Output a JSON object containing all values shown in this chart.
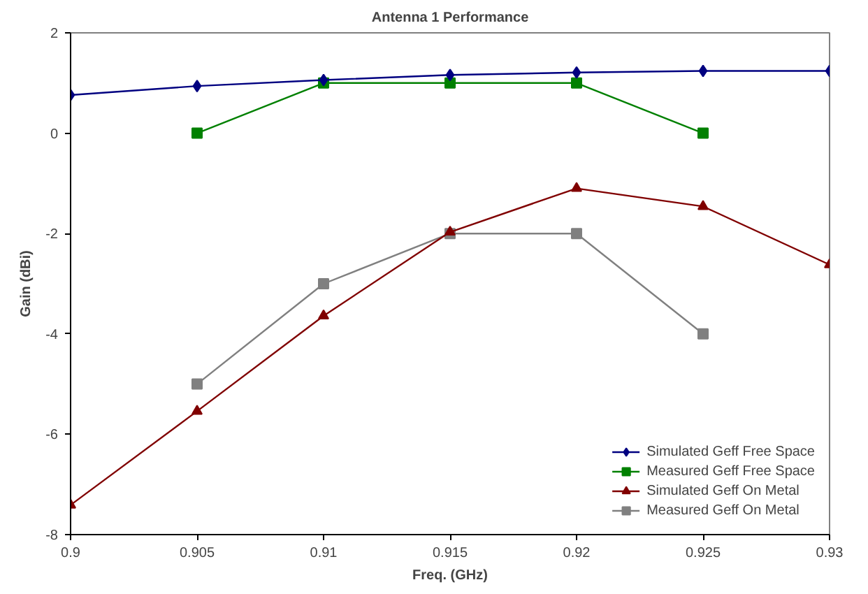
{
  "chart_data": {
    "type": "line",
    "title": "Antenna 1 Performance",
    "xlabel": "Freq. (GHz)",
    "ylabel": "Gain (dBi)",
    "xlim": [
      0.9,
      0.93
    ],
    "xticks": [
      0.9,
      0.905,
      0.91,
      0.915,
      0.92,
      0.925,
      0.93
    ],
    "ylim": [
      -8,
      2
    ],
    "yticks": [
      -8,
      -6,
      -4,
      -2,
      0,
      2
    ],
    "grid": false,
    "legend": "bottom right",
    "line_style": "solid",
    "series": [
      {
        "name": "Simulated Geff Free Space",
        "color": "#000080",
        "marker": "diamond",
        "x": [
          0.9,
          0.905,
          0.91,
          0.915,
          0.92,
          0.925,
          0.93
        ],
        "values": [
          0.76,
          0.94,
          1.06,
          1.16,
          1.21,
          1.24,
          1.24
        ]
      },
      {
        "name": "Measured Geff Free Space",
        "color": "#008000",
        "marker": "square",
        "x": [
          0.905,
          0.91,
          0.915,
          0.92,
          0.925
        ],
        "values": [
          0,
          1,
          1,
          1,
          0
        ]
      },
      {
        "name": "Simulated Geff On Metal",
        "color": "#800000",
        "marker": "triangle",
        "x": [
          0.9,
          0.905,
          0.91,
          0.915,
          0.92,
          0.925,
          0.93
        ],
        "values": [
          -7.41,
          -5.54,
          -3.64,
          -1.97,
          -1.1,
          -1.46,
          -2.62
        ]
      },
      {
        "name": "Measured Geff On Metal",
        "color": "#808080",
        "marker": "square",
        "x": [
          0.905,
          0.91,
          0.915,
          0.92,
          0.925
        ],
        "values": [
          -5,
          -3,
          -2,
          -2,
          -4
        ]
      }
    ]
  }
}
